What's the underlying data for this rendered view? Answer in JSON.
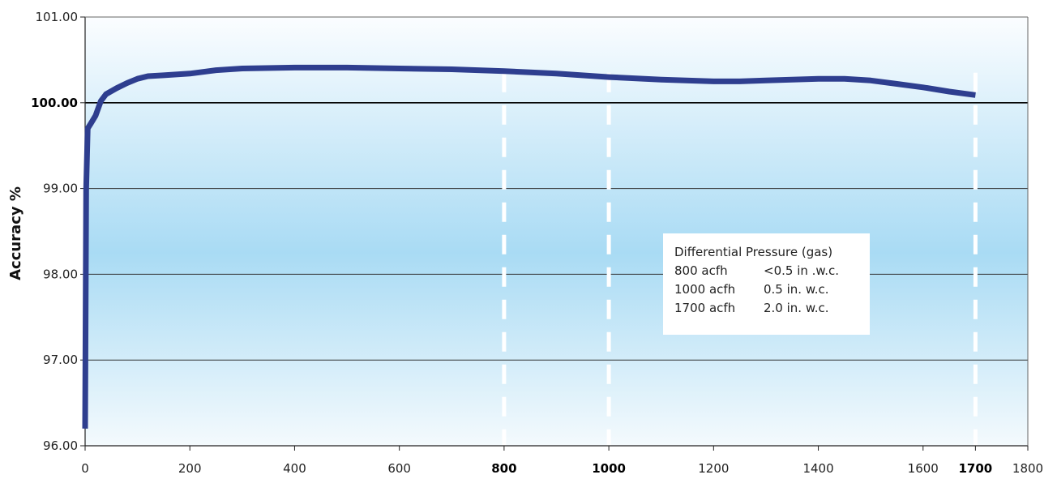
{
  "chart_data": {
    "type": "line",
    "ylabel": "Accuracy %",
    "xlabel": "",
    "xlim": [
      0,
      1800
    ],
    "ylim": [
      96,
      101
    ],
    "x_ticks": [
      "0",
      "200",
      "400",
      "600",
      "800",
      "1000",
      "1200",
      "1400",
      "1600",
      "1700",
      "1800"
    ],
    "x_tick_values": [
      0,
      200,
      400,
      600,
      800,
      1000,
      1200,
      1400,
      1600,
      1700,
      1800
    ],
    "x_ticks_bold": [
      "800",
      "1000",
      "1700"
    ],
    "y_ticks": [
      "96.00",
      "97.00",
      "98.00",
      "99.00",
      "100.00",
      "101.00"
    ],
    "y_tick_values": [
      96,
      97,
      98,
      99,
      100,
      101
    ],
    "y_ticks_bold": [
      "100.00"
    ],
    "grid": "horizontal",
    "reference_lines_x": [
      800,
      1000,
      1700
    ],
    "series": [
      {
        "color": "#2e3e8f",
        "x": [
          0,
          2,
          5,
          10,
          20,
          30,
          40,
          60,
          80,
          100,
          120,
          150,
          200,
          250,
          300,
          400,
          500,
          600,
          700,
          800,
          900,
          1000,
          1100,
          1200,
          1250,
          1300,
          1350,
          1400,
          1450,
          1500,
          1550,
          1600,
          1650,
          1700
        ],
        "values": [
          96.2,
          99.0,
          99.7,
          99.75,
          99.85,
          100.02,
          100.1,
          100.17,
          100.23,
          100.28,
          100.31,
          100.32,
          100.34,
          100.38,
          100.4,
          100.41,
          100.41,
          100.4,
          100.39,
          100.37,
          100.34,
          100.3,
          100.27,
          100.25,
          100.25,
          100.26,
          100.27,
          100.28,
          100.28,
          100.26,
          100.22,
          100.18,
          100.13,
          100.09
        ]
      }
    ],
    "annotation": {
      "title": "Differential Pressure (gas)",
      "rows": [
        [
          "800 acfh",
          "<0.5 in .w.c."
        ],
        [
          "1000 acfh",
          "0.5 in. w.c."
        ],
        [
          "1700 acfh",
          "2.0 in. w.c."
        ]
      ]
    },
    "colors": {
      "line": "#2e3e8f",
      "background_top": "#fbfdff",
      "background_mid": "#a9dbf4",
      "background_bottom": "#f4fafd",
      "gridline": "#333333",
      "reference_line": "#ffffff"
    }
  }
}
